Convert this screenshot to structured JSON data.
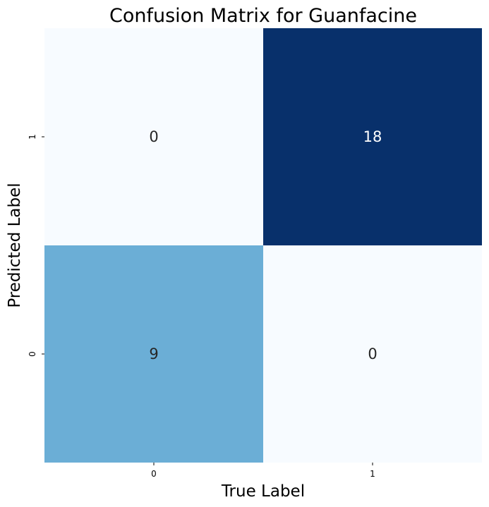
{
  "chart_data": {
    "type": "heatmap",
    "title": "Confusion Matrix for Guanfacine",
    "xlabel": "True Label",
    "ylabel": "Predicted Label",
    "x_categories": [
      "0",
      "1"
    ],
    "y_categories_top_to_bottom": [
      "1",
      "0"
    ],
    "values": [
      [
        0,
        18
      ],
      [
        9,
        0
      ]
    ],
    "annotations": [
      [
        "0",
        "18"
      ],
      [
        "9",
        "0"
      ]
    ],
    "colormap": "Blues",
    "color_range": [
      0,
      18
    ],
    "colorbar": false,
    "grid": false,
    "legend": "none",
    "colors": {
      "low": "#f7fbff",
      "mid": "#6baed6",
      "high": "#08306b",
      "text_dark": "#262626",
      "text_light": "#ffffff"
    }
  }
}
